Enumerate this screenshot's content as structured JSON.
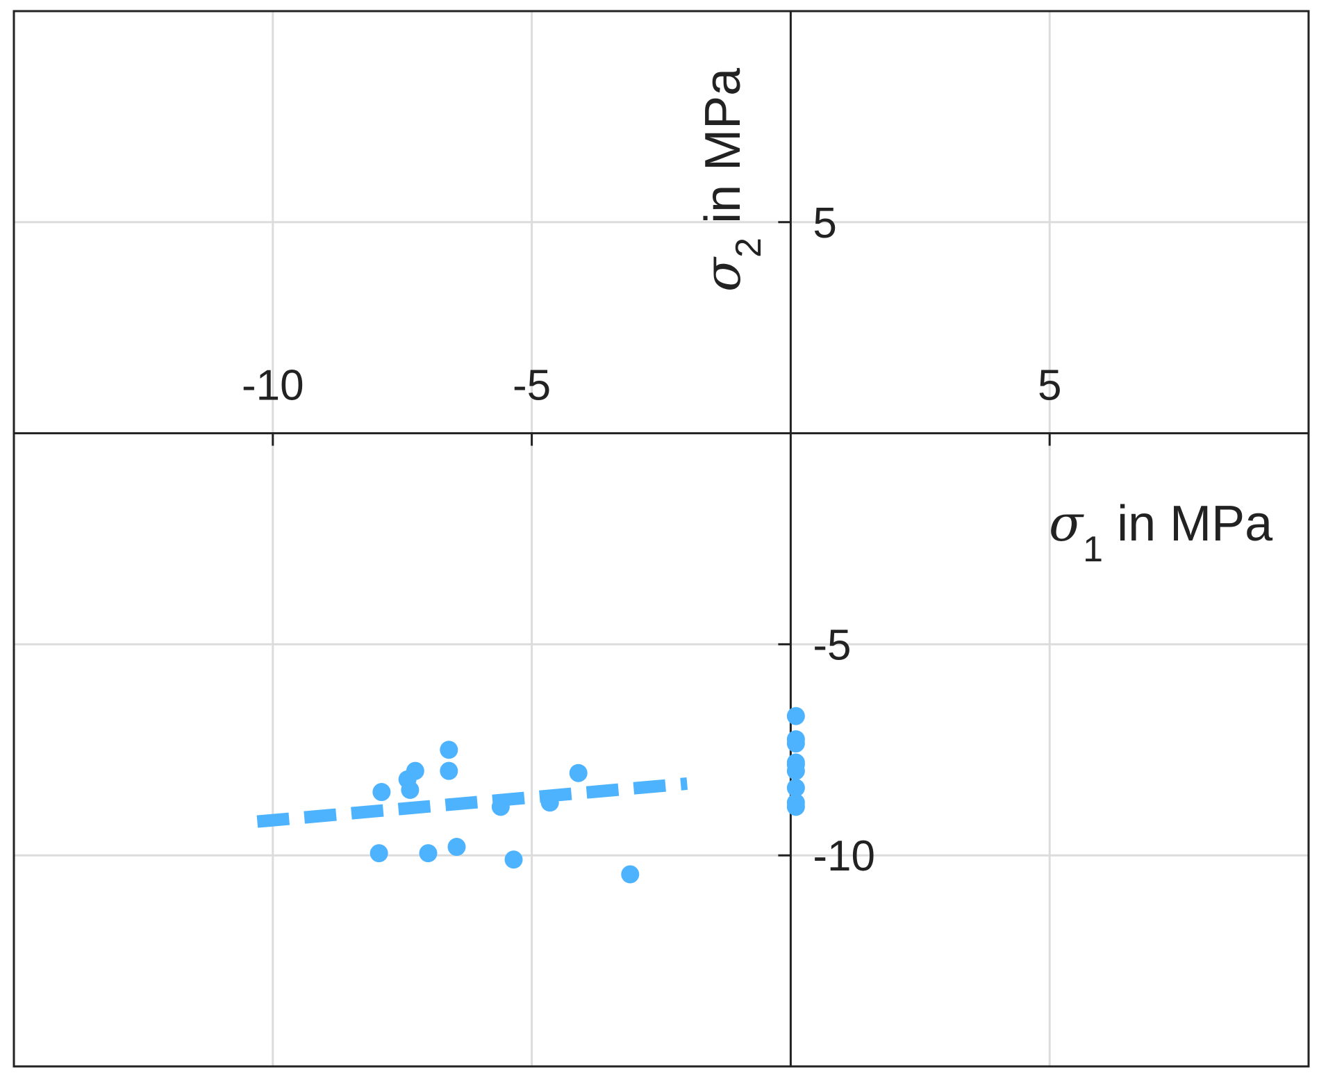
{
  "chart_data": {
    "type": "scatter",
    "xlabel": {
      "symbol": "σ",
      "subscript": "1",
      "text": " in MPa"
    },
    "ylabel": {
      "symbol": "σ",
      "subscript": "2",
      "text": " in MPa"
    },
    "xlim": [
      -15,
      10
    ],
    "ylim": [
      -15,
      10
    ],
    "x_ticks": [
      -10,
      -5,
      5
    ],
    "y_ticks": [
      5,
      -5,
      -10
    ],
    "x_tick_labels": [
      "-10",
      "-5",
      "5"
    ],
    "y_tick_labels": [
      "5",
      "-5",
      "-10"
    ],
    "grid": true,
    "axes_through_origin": true,
    "color": "#4DB3FF",
    "points": [
      {
        "x": -7.9,
        "y": -8.5
      },
      {
        "x": -7.4,
        "y": -8.2
      },
      {
        "x": -7.35,
        "y": -8.45
      },
      {
        "x": -7.25,
        "y": -8.0
      },
      {
        "x": -6.6,
        "y": -7.5
      },
      {
        "x": -6.6,
        "y": -8.0
      },
      {
        "x": -5.6,
        "y": -8.85
      },
      {
        "x": -4.65,
        "y": -8.75
      },
      {
        "x": -4.1,
        "y": -8.05
      },
      {
        "x": -7.95,
        "y": -9.95
      },
      {
        "x": -7.0,
        "y": -9.95
      },
      {
        "x": -6.45,
        "y": -9.8
      },
      {
        "x": -5.35,
        "y": -10.1
      },
      {
        "x": -3.1,
        "y": -10.45
      },
      {
        "x": 0.1,
        "y": -6.7
      },
      {
        "x": 0.1,
        "y": -7.25
      },
      {
        "x": 0.1,
        "y": -7.35
      },
      {
        "x": 0.1,
        "y": -7.8
      },
      {
        "x": 0.1,
        "y": -7.85
      },
      {
        "x": 0.1,
        "y": -8.0
      },
      {
        "x": 0.1,
        "y": -8.4
      },
      {
        "x": 0.1,
        "y": -8.75
      },
      {
        "x": 0.1,
        "y": -8.85
      }
    ],
    "fit_line": {
      "x": [
        -10.3,
        -2.0
      ],
      "y": [
        -9.2,
        -8.3
      ],
      "style": "dashed"
    }
  }
}
